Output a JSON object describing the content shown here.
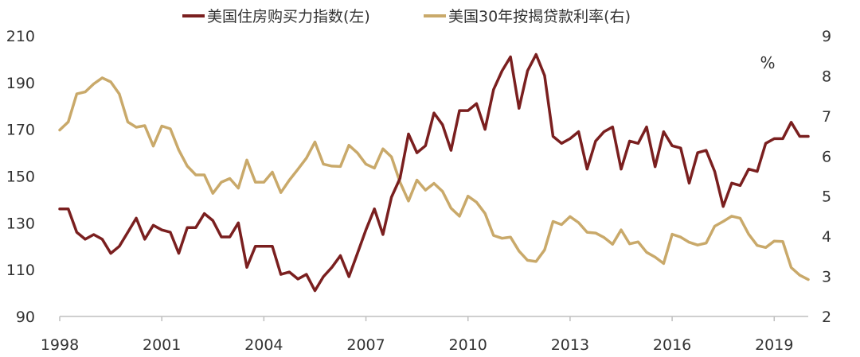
{
  "chart_data": {
    "type": "line",
    "legend_position": "top-center",
    "grid": false,
    "x_ticks": [
      "1998",
      "2001",
      "2004",
      "2007",
      "2010",
      "2013",
      "2016",
      "2019"
    ],
    "xlim": [
      1998,
      2020
    ],
    "left_axis": {
      "ticks": [
        "90",
        "110",
        "130",
        "150",
        "170",
        "190",
        "210"
      ],
      "ylim": [
        90,
        210
      ]
    },
    "right_axis": {
      "ticks": [
        "2",
        "3",
        "4",
        "5",
        "6",
        "7",
        "8",
        "9"
      ],
      "ylim": [
        2,
        9
      ],
      "unit_label": "%"
    },
    "series": [
      {
        "name": "美国住房购买力指数(左)",
        "axis": "left",
        "color": "#7a1f1f",
        "x": [
          1998.0,
          1998.25,
          1998.5,
          1998.75,
          1999.0,
          1999.25,
          1999.5,
          1999.75,
          2000.0,
          2000.25,
          2000.5,
          2000.75,
          2001.0,
          2001.25,
          2001.5,
          2001.75,
          2002.0,
          2002.25,
          2002.5,
          2002.75,
          2003.0,
          2003.25,
          2003.5,
          2003.75,
          2004.0,
          2004.25,
          2004.5,
          2004.75,
          2005.0,
          2005.25,
          2005.5,
          2005.75,
          2006.0,
          2006.25,
          2006.5,
          2006.75,
          2007.0,
          2007.25,
          2007.5,
          2007.75,
          2008.0,
          2008.25,
          2008.5,
          2008.75,
          2009.0,
          2009.25,
          2009.5,
          2009.75,
          2010.0,
          2010.25,
          2010.5,
          2010.75,
          2011.0,
          2011.25,
          2011.5,
          2011.75,
          2012.0,
          2012.25,
          2012.5,
          2012.75,
          2013.0,
          2013.25,
          2013.5,
          2013.75,
          2014.0,
          2014.25,
          2014.5,
          2014.75,
          2015.0,
          2015.25,
          2015.5,
          2015.75,
          2016.0,
          2016.25,
          2016.5,
          2016.75,
          2017.0,
          2017.25,
          2017.5,
          2017.75,
          2018.0,
          2018.25,
          2018.5,
          2018.75,
          2019.0,
          2019.25,
          2019.5,
          2019.75,
          2020.0
        ],
        "values": [
          136,
          136,
          126,
          123,
          125,
          123,
          117,
          120,
          126,
          132,
          123,
          129,
          127,
          126,
          117,
          128,
          128,
          134,
          131,
          124,
          124,
          130,
          111,
          120,
          120,
          120,
          108,
          109,
          106,
          108,
          101,
          107,
          111,
          116,
          107,
          117,
          127,
          136,
          125,
          141,
          149,
          168,
          160,
          163,
          177,
          172,
          161,
          178,
          178,
          181,
          170,
          187,
          195,
          201,
          179,
          195,
          202,
          193,
          167,
          164,
          166,
          169,
          153,
          165,
          169,
          171,
          153,
          165,
          164,
          171,
          154,
          169,
          163,
          162,
          147,
          160,
          161,
          152,
          137,
          147,
          146,
          153,
          152,
          164,
          166,
          166,
          173,
          167,
          167
        ]
      },
      {
        "name": "美国30年按揭贷款利率(右)",
        "axis": "right",
        "color": "#c9a96a",
        "x": [
          1998.0,
          1998.25,
          1998.5,
          1998.75,
          1999.0,
          1999.25,
          1999.5,
          1999.75,
          2000.0,
          2000.25,
          2000.5,
          2000.75,
          2001.0,
          2001.25,
          2001.5,
          2001.75,
          2002.0,
          2002.25,
          2002.5,
          2002.75,
          2003.0,
          2003.25,
          2003.5,
          2003.75,
          2004.0,
          2004.25,
          2004.5,
          2004.75,
          2005.0,
          2005.25,
          2005.5,
          2005.75,
          2006.0,
          2006.25,
          2006.5,
          2006.75,
          2007.0,
          2007.25,
          2007.5,
          2007.75,
          2008.0,
          2008.25,
          2008.5,
          2008.75,
          2009.0,
          2009.25,
          2009.5,
          2009.75,
          2010.0,
          2010.25,
          2010.5,
          2010.75,
          2011.0,
          2011.25,
          2011.5,
          2011.75,
          2012.0,
          2012.25,
          2012.5,
          2012.75,
          2013.0,
          2013.25,
          2013.5,
          2013.75,
          2014.0,
          2014.25,
          2014.5,
          2014.75,
          2015.0,
          2015.25,
          2015.5,
          2015.75,
          2016.0,
          2016.25,
          2016.5,
          2016.75,
          2017.0,
          2017.25,
          2017.5,
          2017.75,
          2018.0,
          2018.25,
          2018.5,
          2018.75,
          2019.0,
          2019.25,
          2019.5,
          2019.75,
          2020.0
        ],
        "values": [
          6.65,
          6.85,
          7.55,
          7.6,
          7.8,
          7.95,
          7.85,
          7.55,
          6.85,
          6.72,
          6.76,
          6.25,
          6.75,
          6.68,
          6.15,
          5.75,
          5.53,
          5.53,
          5.07,
          5.35,
          5.44,
          5.2,
          5.9,
          5.35,
          5.35,
          5.6,
          5.09,
          5.4,
          5.67,
          5.95,
          6.35,
          5.8,
          5.75,
          5.74,
          6.27,
          6.08,
          5.8,
          5.7,
          6.18,
          5.98,
          5.35,
          4.88,
          5.4,
          5.15,
          5.32,
          5.12,
          4.7,
          4.5,
          5.0,
          4.85,
          4.57,
          4.02,
          3.95,
          3.98,
          3.63,
          3.4,
          3.37,
          3.66,
          4.37,
          4.29,
          4.49,
          4.34,
          4.1,
          4.08,
          3.97,
          3.8,
          4.16,
          3.81,
          3.86,
          3.6,
          3.48,
          3.32,
          4.05,
          3.98,
          3.85,
          3.78,
          3.83,
          4.25,
          4.37,
          4.5,
          4.45,
          4.05,
          3.77,
          3.72,
          3.88,
          3.87,
          3.22,
          3.03,
          2.92
        ]
      }
    ]
  }
}
